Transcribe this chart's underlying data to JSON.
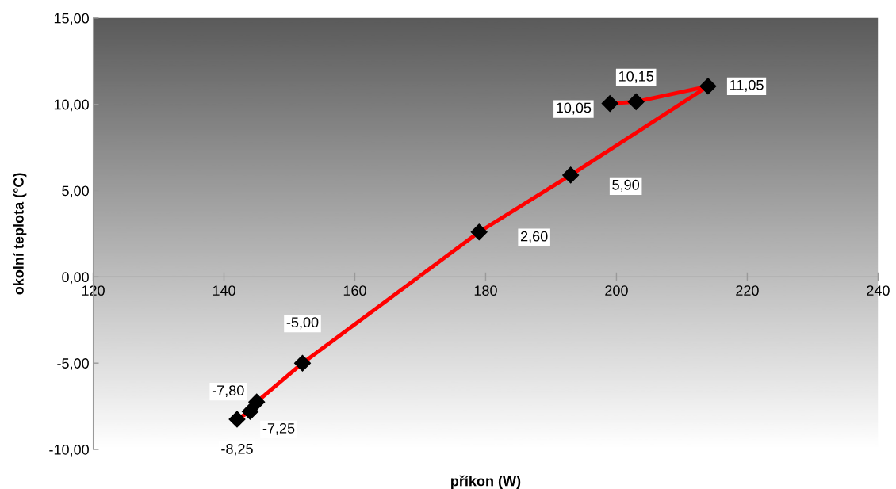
{
  "chart_data": {
    "type": "line",
    "xlabel": "příkon (W)",
    "ylabel": "okolní teplota (°C)",
    "x": [
      142,
      144,
      145,
      152,
      179,
      193,
      214,
      203,
      199
    ],
    "series": [
      {
        "color": "#ff0000",
        "values": [
          -8.25,
          -7.8,
          -7.25,
          -5.0,
          2.6,
          5.9,
          11.05,
          10.15,
          10.05
        ]
      }
    ],
    "value_labels": [
      "-8,25",
      "-7,80",
      "-7,25",
      "-5,00",
      "2,60",
      "5,90",
      "11,05",
      "10,15",
      "10,05"
    ],
    "xlim": [
      120,
      240
    ],
    "xticks": [
      120,
      140,
      160,
      180,
      200,
      220,
      240
    ],
    "ylim": [
      -10,
      15
    ],
    "yticks": [
      {
        "value": -10,
        "label": "-10,00"
      },
      {
        "value": -5,
        "label": "-5,00"
      },
      {
        "value": 0,
        "label": "0,00"
      },
      {
        "value": 5,
        "label": "5,00"
      },
      {
        "value": 10,
        "label": "10,00"
      },
      {
        "value": 15,
        "label": "15,00"
      }
    ],
    "marker": "diamond",
    "line_style": "solid",
    "grid": false,
    "legend": false
  }
}
